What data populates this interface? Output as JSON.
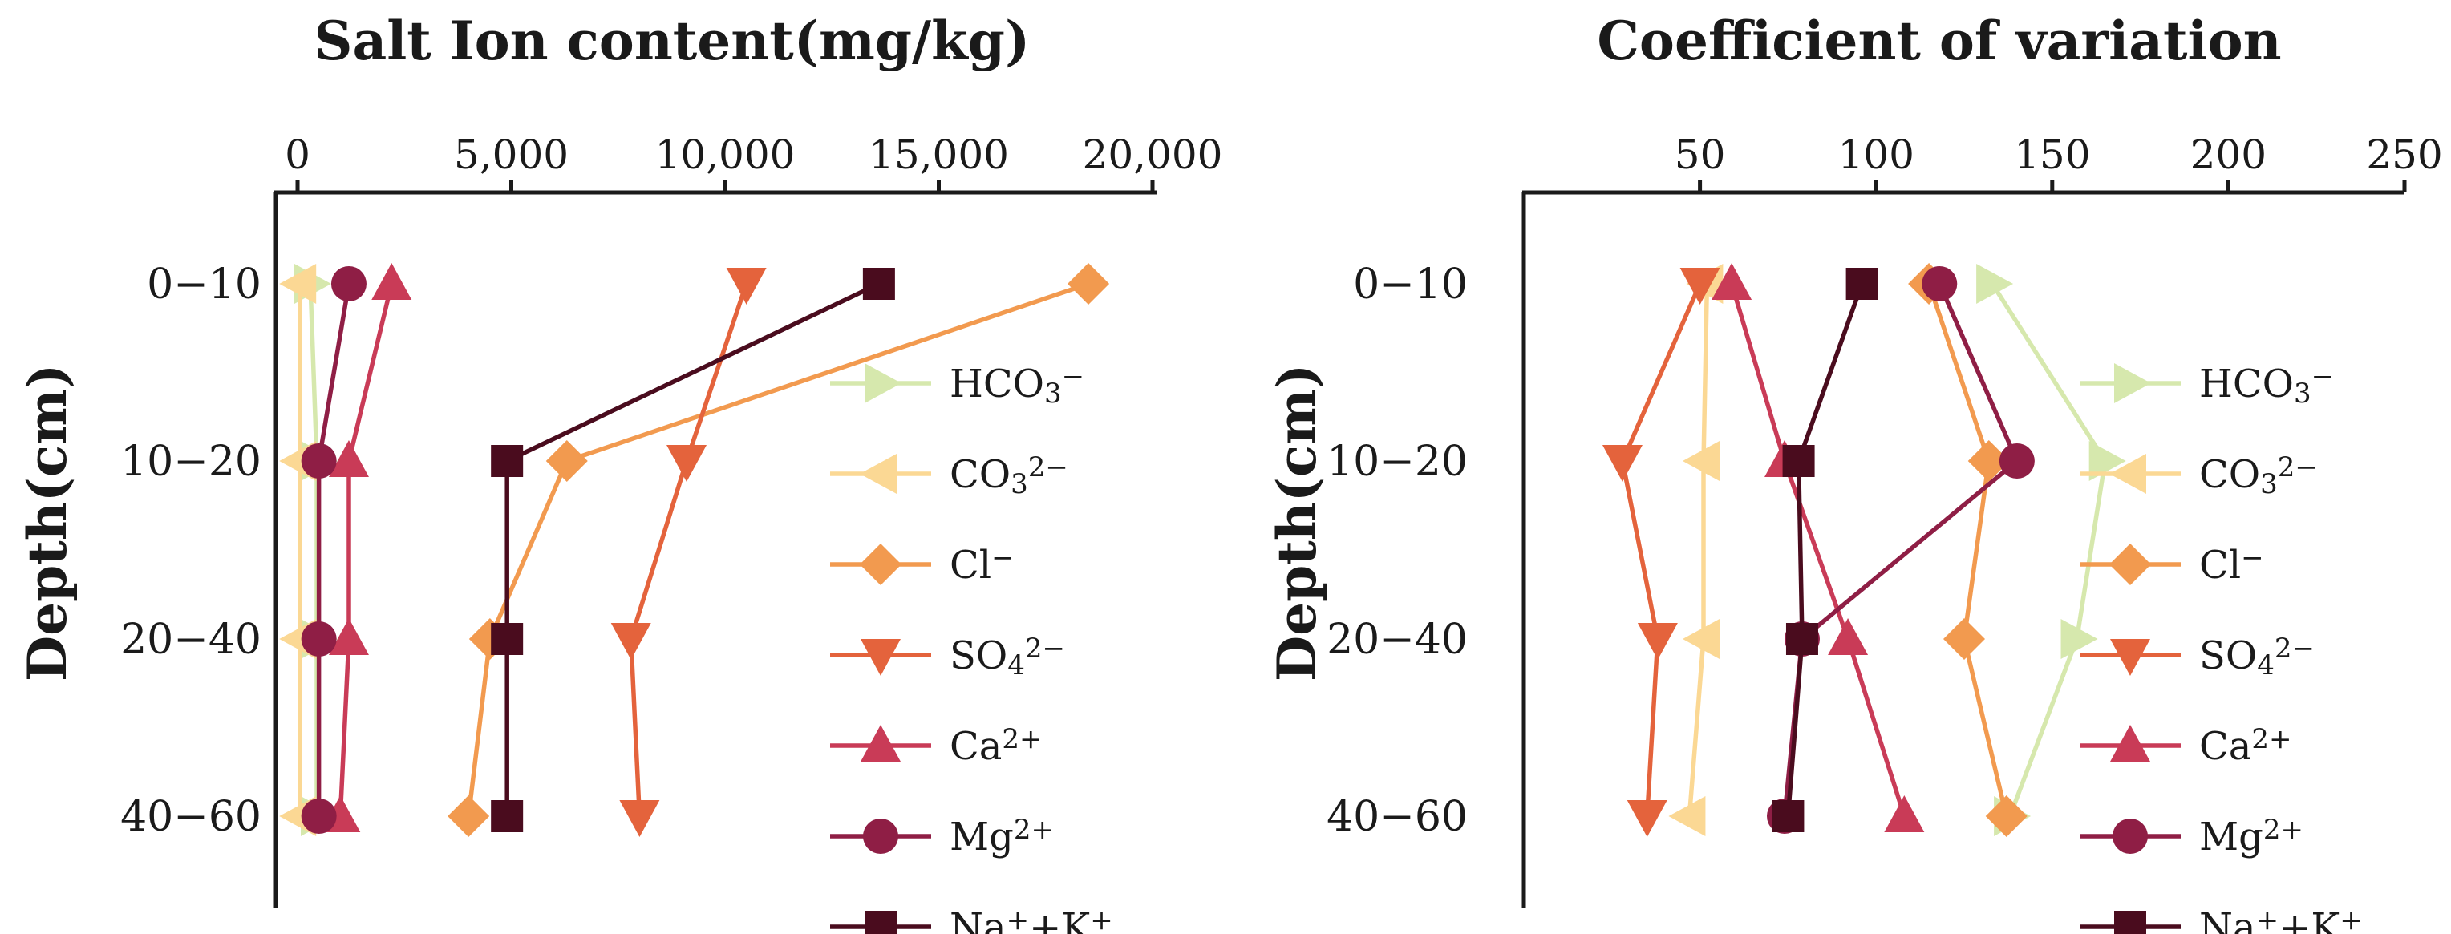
{
  "colors": {
    "HCO3": "#d6e8ad",
    "CO3": "#fbd894",
    "Cl": "#f29a4f",
    "SO4": "#e4633c",
    "Ca": "#c93b57",
    "Mg": "#8f1e45",
    "NaK": "#4a0c1e"
  },
  "legend": [
    {
      "key": "HCO3",
      "base": "HCO",
      "sub": "3",
      "sup": "−",
      "marker": "triangle-right"
    },
    {
      "key": "CO3",
      "base": "CO",
      "sub": "3",
      "sup": "2−",
      "marker": "triangle-left"
    },
    {
      "key": "Cl",
      "base": "Cl",
      "sub": "",
      "sup": "−",
      "marker": "diamond"
    },
    {
      "key": "SO4",
      "base": "SO",
      "sub": "4",
      "sup": "2−",
      "marker": "triangle-down"
    },
    {
      "key": "Ca",
      "base": "Ca",
      "sub": "",
      "sup": "2+",
      "marker": "triangle-up"
    },
    {
      "key": "Mg",
      "base": "Mg",
      "sub": "",
      "sup": "2+",
      "marker": "circle"
    },
    {
      "key": "NaK",
      "base": "Na",
      "sub": "",
      "sup": "+",
      "base2": "+K",
      "sup2": "+",
      "marker": "square"
    }
  ],
  "chart_data": [
    {
      "type": "line",
      "title": "Salt Ion content(mg/kg)",
      "xlabel": "",
      "ylabel": "Depth(cm)",
      "xlim": [
        0,
        20000
      ],
      "xticks": [
        0,
        5000,
        10000,
        15000,
        20000
      ],
      "xtick_labels": [
        "0",
        "5,000",
        "10,000",
        "15,000",
        "20,000"
      ],
      "categories": [
        "0−10",
        "10−20",
        "20−40",
        "40−60"
      ],
      "legend_position": "right",
      "series": [
        {
          "name": "HCO3−",
          "key": "HCO3",
          "values": [
            300,
            450,
            450,
            450
          ]
        },
        {
          "name": "CO32−",
          "key": "CO3",
          "values": [
            60,
            60,
            60,
            60
          ]
        },
        {
          "name": "Cl−",
          "key": "Cl",
          "values": [
            18500,
            6300,
            4500,
            4000
          ]
        },
        {
          "name": "SO42−",
          "key": "SO4",
          "values": [
            10500,
            9100,
            7800,
            8000
          ]
        },
        {
          "name": "Ca2+",
          "key": "Ca",
          "values": [
            2200,
            1200,
            1200,
            1000
          ]
        },
        {
          "name": "Mg2+",
          "key": "Mg",
          "values": [
            1200,
            500,
            500,
            500
          ]
        },
        {
          "name": "Na++K+",
          "key": "NaK",
          "values": [
            13600,
            4900,
            4900,
            4900
          ]
        }
      ]
    },
    {
      "type": "line",
      "title": "Coefficient of variation",
      "xlabel": "",
      "ylabel": "Depth(cm)",
      "xlim": [
        0,
        250
      ],
      "xticks": [
        50,
        100,
        150,
        200,
        250
      ],
      "xtick_labels": [
        "50",
        "100",
        "150",
        "200",
        "250"
      ],
      "categories": [
        "0−10",
        "10−20",
        "20−40",
        "40−60"
      ],
      "legend_position": "right",
      "series": [
        {
          "name": "HCO3−",
          "key": "HCO3",
          "values": [
            133,
            165,
            157,
            138
          ]
        },
        {
          "name": "CO32−",
          "key": "CO3",
          "values": [
            52,
            51,
            51,
            47
          ]
        },
        {
          "name": "Cl−",
          "key": "Cl",
          "values": [
            115,
            132,
            125,
            137
          ]
        },
        {
          "name": "SO42−",
          "key": "SO4",
          "values": [
            50,
            28,
            38,
            35
          ]
        },
        {
          "name": "Ca2+",
          "key": "Ca",
          "values": [
            59,
            74,
            92,
            108
          ]
        },
        {
          "name": "Mg2+",
          "key": "Mg",
          "values": [
            118,
            140,
            79,
            74
          ]
        },
        {
          "name": "Na++K+",
          "key": "NaK",
          "values": [
            96,
            78,
            79,
            75
          ]
        }
      ]
    }
  ]
}
